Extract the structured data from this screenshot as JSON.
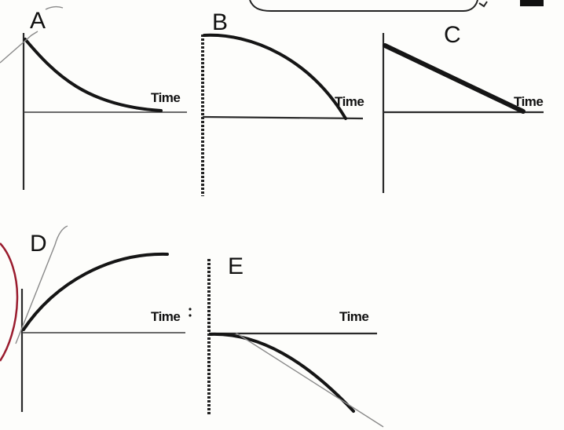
{
  "panels": [
    {
      "letter": "A",
      "time_label": "Time"
    },
    {
      "letter": "B",
      "time_label": "Time"
    },
    {
      "letter": "C",
      "time_label": "Time"
    },
    {
      "letter": "D",
      "time_label": "Time"
    },
    {
      "letter": "E",
      "time_label": "Time"
    }
  ],
  "colors": {
    "ink": "#151515",
    "axis": "#2a2a2a",
    "pencil": "#8a8a8a",
    "circle_mark": "#9a1c2e",
    "background": "#fdfdfb"
  }
}
